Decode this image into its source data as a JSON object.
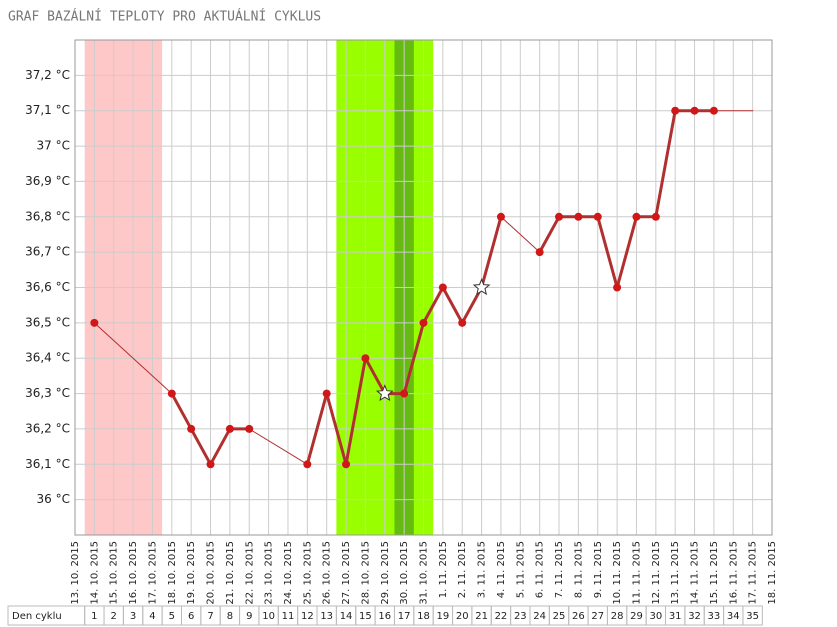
{
  "chart_data": {
    "type": "line",
    "title": "GRAF BAZÁLNÍ TEPLOTY PRO AKTUÁLNÍ CYKLUS",
    "categories": [
      "13. 10. 2015",
      "14. 10. 2015",
      "15. 10. 2015",
      "16. 10. 2015",
      "17. 10. 2015",
      "18. 10. 2015",
      "19. 10. 2015",
      "20. 10. 2015",
      "21. 10. 2015",
      "22. 10. 2015",
      "23. 10. 2015",
      "24. 10. 2015",
      "25. 10. 2015",
      "26. 10. 2015",
      "27. 10. 2015",
      "28. 10. 2015",
      "29. 10. 2015",
      "30. 10. 2015",
      "31. 10. 2015",
      "1. 11. 2015",
      "2. 11. 2015",
      "3. 11. 2015",
      "4. 11. 2015",
      "5. 11. 2015",
      "6. 11. 2015",
      "7. 11. 2015",
      "8. 11. 2015",
      "9. 11. 2015",
      "10. 11. 2015",
      "11. 11. 2015",
      "12. 11. 2015",
      "13. 11. 2015",
      "14. 11. 2015",
      "15. 11. 2015",
      "16. 11. 2015",
      "17. 11. 2015",
      "18. 11. 2015"
    ],
    "values": [
      null,
      36.5,
      null,
      null,
      null,
      36.3,
      36.2,
      36.1,
      36.2,
      36.2,
      null,
      null,
      36.1,
      36.3,
      36.1,
      36.4,
      36.3,
      36.3,
      36.5,
      36.6,
      36.5,
      36.6,
      36.8,
      null,
      36.7,
      36.8,
      36.8,
      36.8,
      36.6,
      36.8,
      36.8,
      37.1,
      37.1,
      37.1,
      null,
      37.1,
      null
    ],
    "color": "#b03030",
    "marker_color": "#d01818",
    "star_points": [
      16,
      21
    ],
    "unmarked_points": [
      35
    ],
    "cycle_day_label": "Den cyklu",
    "cycle_days": [
      null,
      1,
      2,
      3,
      4,
      5,
      6,
      7,
      8,
      9,
      10,
      11,
      12,
      13,
      14,
      15,
      16,
      17,
      18,
      19,
      20,
      21,
      22,
      23,
      24,
      25,
      26,
      27,
      28,
      29,
      30,
      31,
      32,
      33,
      34,
      35,
      null
    ],
    "bands": [
      {
        "start": 1,
        "end": 4,
        "color": "#ffc8c8"
      },
      {
        "start": 14,
        "end": 18,
        "color": "#99ff00"
      },
      {
        "start": 17,
        "end": 17,
        "color": "#66bb11"
      }
    ],
    "ylim": [
      35.9,
      37.3
    ],
    "yticks": [
      {
        "value": 36,
        "label": "36 °C"
      },
      {
        "value": 36.1,
        "label": "36,1 °C"
      },
      {
        "value": 36.2,
        "label": "36,2 °C"
      },
      {
        "value": 36.3,
        "label": "36,3 °C"
      },
      {
        "value": 36.4,
        "label": "36,4 °C"
      },
      {
        "value": 36.5,
        "label": "36,5 °C"
      },
      {
        "value": 36.6,
        "label": "36,6 °C"
      },
      {
        "value": 36.7,
        "label": "36,7 °C"
      },
      {
        "value": 36.8,
        "label": "36,8 °C"
      },
      {
        "value": 36.9,
        "label": "36,9 °C"
      },
      {
        "value": 37,
        "label": "37 °C"
      },
      {
        "value": 37.1,
        "label": "37,1 °C"
      },
      {
        "value": 37.2,
        "label": "37,2 °C"
      }
    ],
    "grid": true
  }
}
